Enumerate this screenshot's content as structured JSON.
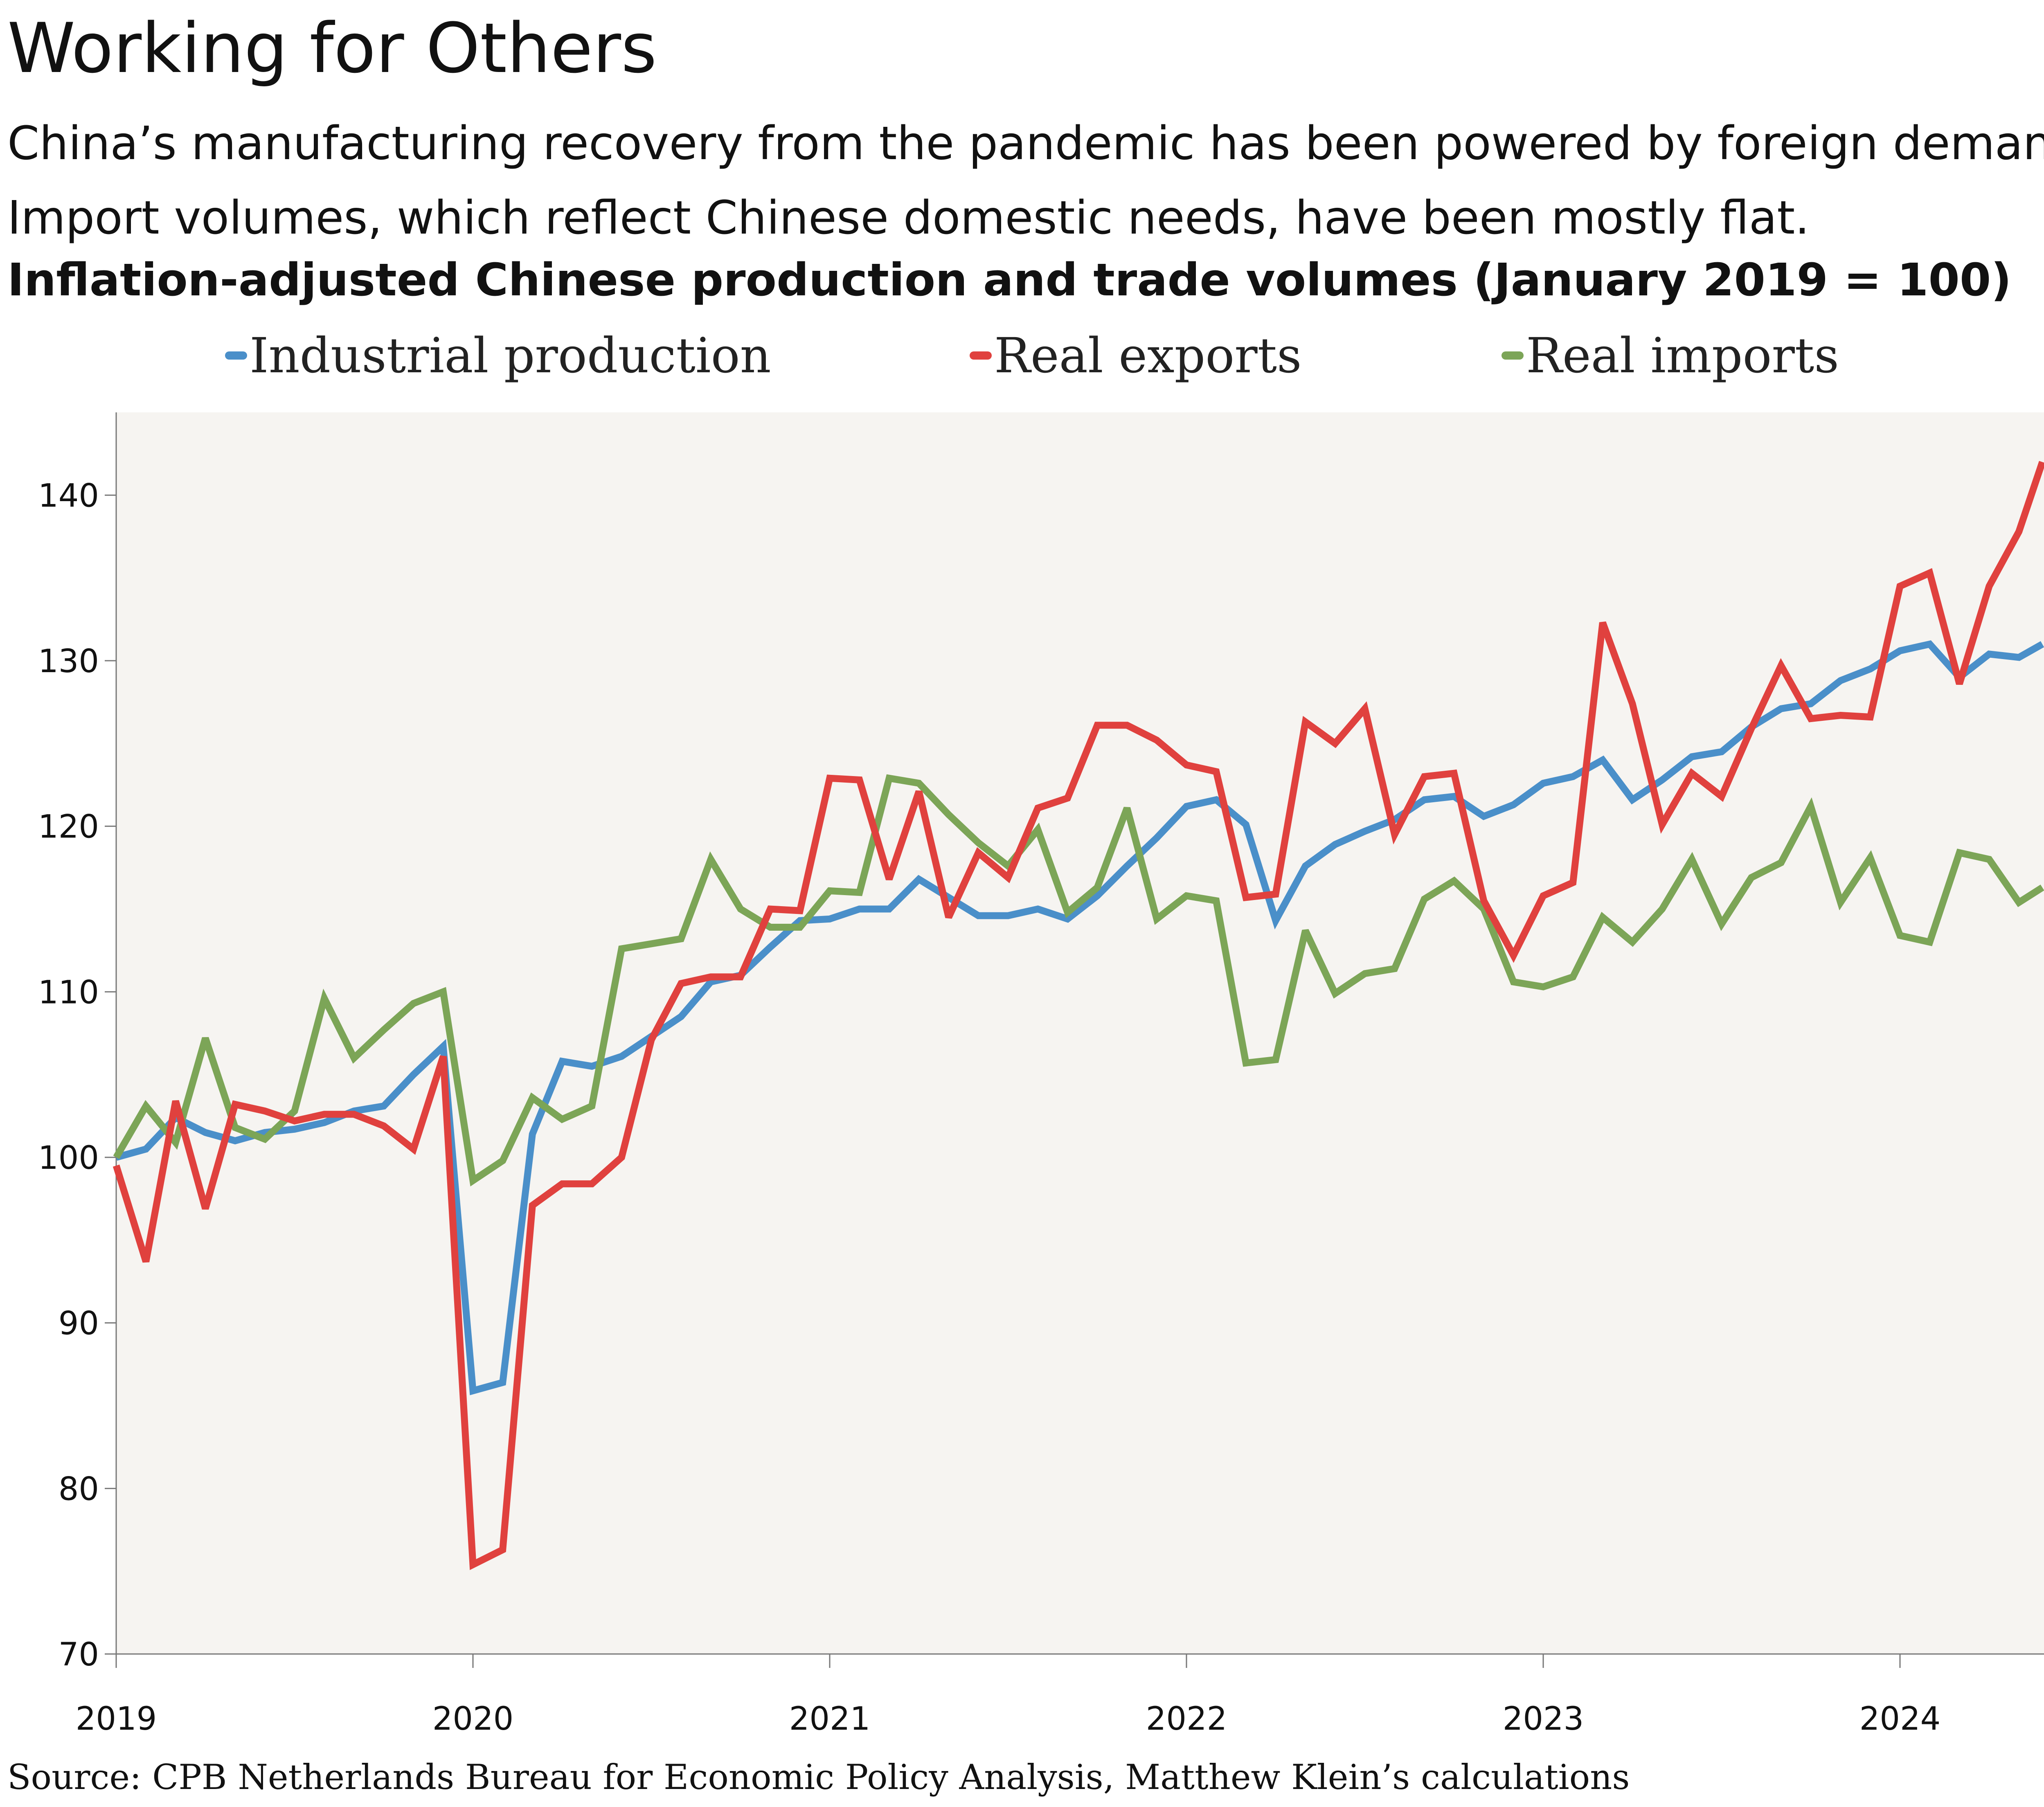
{
  "header": {
    "title": "Working for Others",
    "subtitle_line1": "China’s manufacturing recovery from the pandemic has been powered by foreign demand.",
    "subtitle_line2": "Import volumes, which reflect Chinese domestic needs, have been mostly flat."
  },
  "footer": {
    "source": "Source: CPB Netherlands Bureau for Economic Policy Analysis, Matthew Klein’s calculations"
  },
  "chart_data": {
    "type": "line",
    "title": "Inflation-adjusted Chinese production and trade volumes (January 2019 = 100)",
    "xlabel": "",
    "ylabel": "",
    "ylim": [
      70,
      145
    ],
    "yticks": [
      70,
      80,
      90,
      100,
      110,
      120,
      130,
      140
    ],
    "xticks": [
      "2019",
      "2020",
      "2021",
      "2022",
      "2023",
      "2024"
    ],
    "x_start": "2019-01",
    "x_end": "2024-06",
    "grid": false,
    "legend_position": "top",
    "background_color": "#f6f4f1",
    "x": [
      "2019-01",
      "2019-02",
      "2019-03",
      "2019-04",
      "2019-05",
      "2019-06",
      "2019-07",
      "2019-08",
      "2019-09",
      "2019-10",
      "2019-11",
      "2019-12",
      "2020-01",
      "2020-02",
      "2020-03",
      "2020-04",
      "2020-05",
      "2020-06",
      "2020-07",
      "2020-08",
      "2020-09",
      "2020-10",
      "2020-11",
      "2020-12",
      "2021-01",
      "2021-02",
      "2021-03",
      "2021-04",
      "2021-05",
      "2021-06",
      "2021-07",
      "2021-08",
      "2021-09",
      "2021-10",
      "2021-11",
      "2021-12",
      "2022-01",
      "2022-02",
      "2022-03",
      "2022-04",
      "2022-05",
      "2022-06",
      "2022-07",
      "2022-08",
      "2022-09",
      "2022-10",
      "2022-11",
      "2022-12",
      "2023-01",
      "2023-02",
      "2023-03",
      "2023-04",
      "2023-05",
      "2023-06",
      "2023-07",
      "2023-08",
      "2023-09",
      "2023-10",
      "2023-11",
      "2023-12",
      "2024-01",
      "2024-02",
      "2024-03",
      "2024-04",
      "2024-05",
      "2024-06"
    ],
    "series": [
      {
        "name": "Industrial production",
        "color": "#4a8fc9",
        "values": [
          100,
          100.5,
          102.4,
          101.5,
          101,
          101.5,
          101.7,
          102.1,
          102.8,
          103.1,
          105,
          106.7,
          85.9,
          86.4,
          101.4,
          105.8,
          105.5,
          106.1,
          107.3,
          108.5,
          110.6,
          111,
          112.7,
          114.3,
          114.4,
          115,
          115,
          116.8,
          115.7,
          114.6,
          114.6,
          115,
          114.4,
          115.8,
          117.6,
          119.3,
          121.2,
          121.6,
          120.1,
          114.3,
          117.6,
          118.9,
          119.7,
          120.4,
          121.6,
          121.8,
          120.6,
          121.3,
          122.6,
          123,
          124,
          121.6,
          122.8,
          124.2,
          124.5,
          126,
          127.1,
          127.4,
          128.8,
          129.5,
          130.6,
          131,
          129,
          130.4,
          130.2,
          131
        ]
      },
      {
        "name": "Real exports",
        "color": "#e0413e",
        "values": [
          99.5,
          93.7,
          103.4,
          96.9,
          103.2,
          102.8,
          102.2,
          102.6,
          102.6,
          101.9,
          100.5,
          106.1,
          75.4,
          76.3,
          97.1,
          98.4,
          98.4,
          100,
          107.1,
          110.5,
          110.9,
          110.9,
          115,
          114.9,
          122.9,
          122.8,
          116.8,
          122.1,
          114.5,
          118.4,
          116.9,
          121.1,
          121.7,
          126.1,
          126.1,
          125.2,
          123.7,
          123.3,
          115.7,
          115.9,
          126.3,
          125,
          127.1,
          119.5,
          123,
          123.2,
          115.5,
          112.2,
          115.8,
          116.6,
          132.3,
          127.4,
          120.1,
          123.2,
          121.8,
          125.9,
          129.7,
          126.5,
          126.7,
          126.6,
          134.5,
          135.3,
          128.6,
          134.5,
          137.8,
          142
        ]
      },
      {
        "name": "Real imports",
        "color": "#7ca557",
        "values": [
          100,
          103.1,
          100.9,
          107.2,
          101.8,
          101.1,
          102.8,
          109.6,
          106,
          107.7,
          109.3,
          110,
          98.6,
          99.8,
          103.6,
          102.3,
          103.1,
          112.6,
          112.9,
          113.2,
          118,
          115,
          113.9,
          113.9,
          116.1,
          116,
          122.9,
          122.6,
          120.7,
          119,
          117.6,
          119.8,
          114.8,
          116.3,
          121.1,
          114.4,
          115.8,
          115.5,
          105.7,
          105.9,
          113.7,
          109.9,
          111.1,
          111.4,
          115.6,
          116.7,
          115,
          110.6,
          110.3,
          110.9,
          114.5,
          113,
          115,
          118,
          114.1,
          116.9,
          117.8,
          121.2,
          115.4,
          118.1,
          113.4,
          113,
          118.4,
          118,
          115.4,
          116.3
        ]
      }
    ]
  }
}
